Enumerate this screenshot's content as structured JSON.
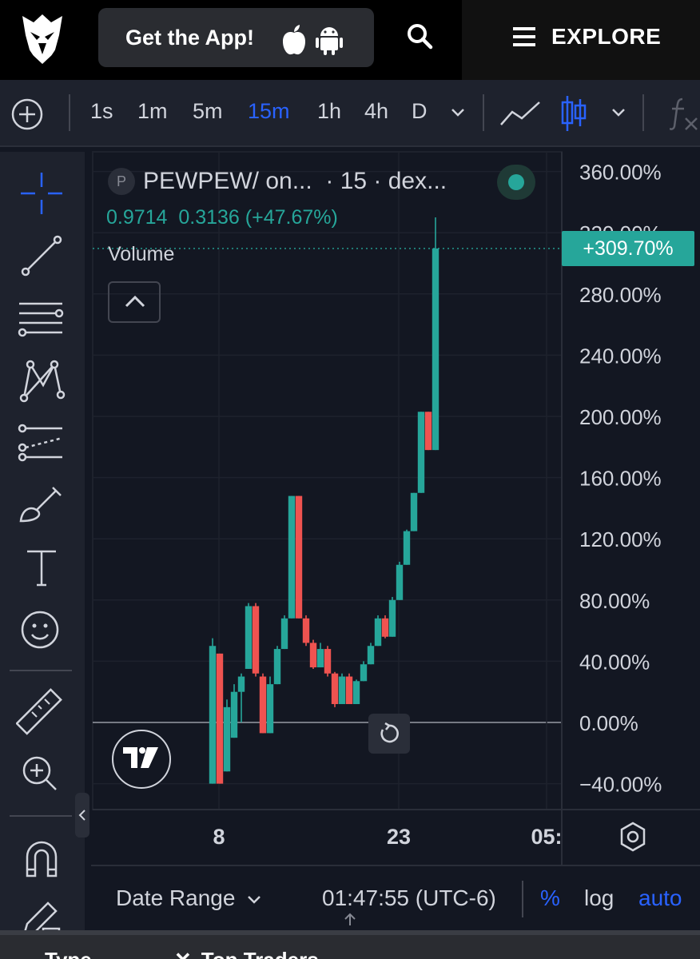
{
  "header": {
    "get_app_label": "Get the App!",
    "explore_label": "EXPLORE"
  },
  "toolbar": {
    "intervals": [
      "1s",
      "1m",
      "5m",
      "15m",
      "1h",
      "4h",
      "D"
    ],
    "active_interval": "15m"
  },
  "legend": {
    "symbol_badge": "P",
    "title": "PEWPEW/ on...  · 15 · dex...",
    "values": "0.9714  0.3136 (+47.67%)",
    "volume_label": "Volume"
  },
  "price_axis": {
    "ticks": [
      "360.00%",
      "320.00%",
      "280.00%",
      "240.00%",
      "200.00%",
      "160.00%",
      "120.00%",
      "80.00%",
      "40.00%",
      "0.00%",
      "−40.00%"
    ],
    "last_value_badge": "+309.70%"
  },
  "time_axis": {
    "ticks": [
      "8",
      "23",
      "05:"
    ]
  },
  "bottom_bar": {
    "date_range_label": "Date Range",
    "clock": "01:47:55 (UTC-6)",
    "percent_label": "%",
    "log_label": "log",
    "auto_label": "auto"
  },
  "footer": {
    "tab1": "Type",
    "tab2": "Top Traders"
  },
  "colors": {
    "up": "#26a69a",
    "down": "#ef5350",
    "accent": "#2962ff",
    "background": "#131722"
  },
  "chart_data": {
    "type": "candlestick",
    "y_unit": "percent change",
    "ylim": [
      -45,
      370
    ],
    "candles": [
      {
        "o": -40,
        "h": 55,
        "l": -40,
        "c": 50
      },
      {
        "o": 45,
        "h": 45,
        "l": -40,
        "c": -40
      },
      {
        "o": -32,
        "h": 15,
        "l": -32,
        "c": 10
      },
      {
        "o": -10,
        "h": 25,
        "l": -10,
        "c": 20
      },
      {
        "o": 20,
        "h": 32,
        "l": 0,
        "c": 30
      },
      {
        "o": 35,
        "h": 78,
        "l": 35,
        "c": 76
      },
      {
        "o": 76,
        "h": 78,
        "l": 30,
        "c": 32
      },
      {
        "o": 30,
        "h": 32,
        "l": -7,
        "c": -7
      },
      {
        "o": -7,
        "h": 30,
        "l": -7,
        "c": 25
      },
      {
        "o": 25,
        "h": 50,
        "l": 25,
        "c": 48
      },
      {
        "o": 48,
        "h": 70,
        "l": 48,
        "c": 68
      },
      {
        "o": 68,
        "h": 148,
        "l": 68,
        "c": 148
      },
      {
        "o": 148,
        "h": 148,
        "l": 68,
        "c": 68
      },
      {
        "o": 68,
        "h": 70,
        "l": 50,
        "c": 52
      },
      {
        "o": 52,
        "h": 54,
        "l": 35,
        "c": 36
      },
      {
        "o": 36,
        "h": 52,
        "l": 36,
        "c": 48
      },
      {
        "o": 48,
        "h": 50,
        "l": 30,
        "c": 32
      },
      {
        "o": 32,
        "h": 33,
        "l": 10,
        "c": 12
      },
      {
        "o": 12,
        "h": 32,
        "l": 12,
        "c": 30
      },
      {
        "o": 30,
        "h": 32,
        "l": 12,
        "c": 12
      },
      {
        "o": 12,
        "h": 28,
        "l": 12,
        "c": 27
      },
      {
        "o": 27,
        "h": 40,
        "l": 27,
        "c": 38
      },
      {
        "o": 38,
        "h": 52,
        "l": 38,
        "c": 50
      },
      {
        "o": 50,
        "h": 70,
        "l": 50,
        "c": 68
      },
      {
        "o": 68,
        "h": 70,
        "l": 55,
        "c": 56
      },
      {
        "o": 56,
        "h": 82,
        "l": 56,
        "c": 80
      },
      {
        "o": 80,
        "h": 105,
        "l": 80,
        "c": 103
      },
      {
        "o": 103,
        "h": 126,
        "l": 103,
        "c": 125
      },
      {
        "o": 125,
        "h": 150,
        "l": 125,
        "c": 150
      },
      {
        "o": 150,
        "h": 203,
        "l": 150,
        "c": 203
      },
      {
        "o": 203,
        "h": 203,
        "l": 178,
        "c": 178
      },
      {
        "o": 178,
        "h": 330,
        "l": 178,
        "c": 309.7
      }
    ]
  }
}
